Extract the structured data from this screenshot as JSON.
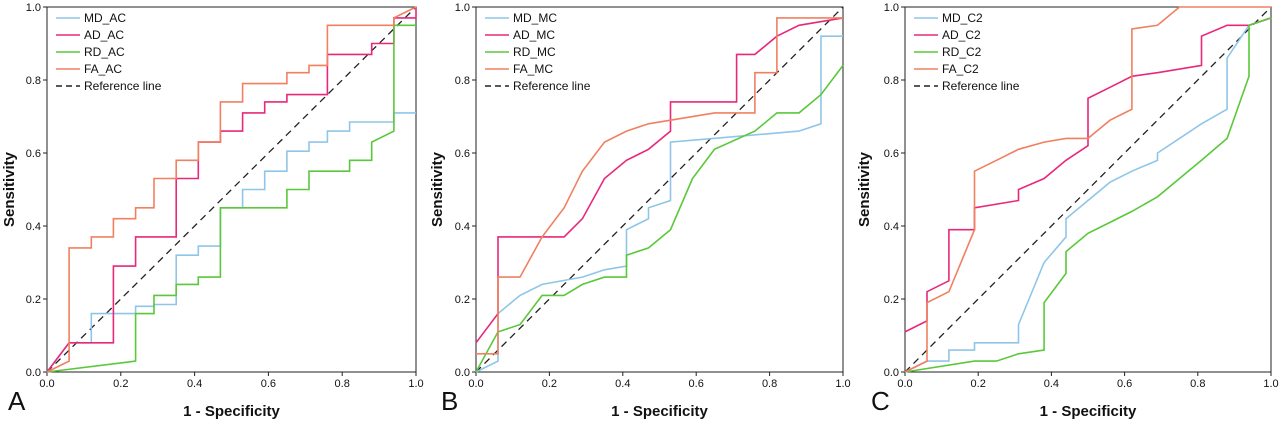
{
  "chart_data": [
    {
      "type": "line",
      "panel_label": "A",
      "xlabel": "1 - Specificity",
      "ylabel": "Sensitivity",
      "xlim": [
        0,
        1
      ],
      "ylim": [
        0,
        1
      ],
      "xticks": [
        "0.0",
        "0.2",
        "0.4",
        "0.6",
        "0.8",
        "1.0"
      ],
      "yticks": [
        "0.0",
        "0.2",
        "0.4",
        "0.6",
        "0.8",
        "1.0"
      ],
      "grid": false,
      "legend_position": "top-left",
      "reference_line": {
        "name": "Reference line",
        "color": "#222222"
      },
      "series": [
        {
          "name": "MD_AC",
          "color": "#8fc6e8",
          "x": [
            0,
            0.06,
            0.12,
            0.12,
            0.24,
            0.24,
            0.29,
            0.29,
            0.35,
            0.35,
            0.41,
            0.41,
            0.47,
            0.47,
            0.53,
            0.53,
            0.59,
            0.59,
            0.65,
            0.65,
            0.71,
            0.71,
            0.76,
            0.76,
            0.82,
            0.82,
            0.94,
            0.94,
            1.0
          ],
          "y": [
            0,
            0.08,
            0.08,
            0.16,
            0.16,
            0.18,
            0.18,
            0.185,
            0.185,
            0.32,
            0.32,
            0.345,
            0.345,
            0.45,
            0.45,
            0.5,
            0.5,
            0.55,
            0.55,
            0.605,
            0.605,
            0.63,
            0.63,
            0.66,
            0.66,
            0.685,
            0.685,
            0.71,
            0.71
          ]
        },
        {
          "name": "AD_AC",
          "color": "#e8287a",
          "x": [
            0,
            0.06,
            0.18,
            0.18,
            0.24,
            0.24,
            0.35,
            0.35,
            0.41,
            0.41,
            0.47,
            0.47,
            0.53,
            0.53,
            0.59,
            0.59,
            0.65,
            0.65,
            0.76,
            0.76,
            0.88,
            0.88,
            0.94,
            0.94,
            1.0,
            1.0
          ],
          "y": [
            0,
            0.08,
            0.08,
            0.29,
            0.29,
            0.37,
            0.37,
            0.53,
            0.53,
            0.63,
            0.63,
            0.66,
            0.66,
            0.71,
            0.71,
            0.74,
            0.74,
            0.76,
            0.76,
            0.87,
            0.87,
            0.9,
            0.9,
            0.97,
            0.97,
            1.0
          ]
        },
        {
          "name": "RD_AC",
          "color": "#5ac83a",
          "x": [
            0,
            0.24,
            0.24,
            0.29,
            0.29,
            0.35,
            0.35,
            0.41,
            0.41,
            0.47,
            0.47,
            0.65,
            0.65,
            0.71,
            0.71,
            0.82,
            0.82,
            0.88,
            0.88,
            0.94,
            0.94,
            1.0
          ],
          "y": [
            0,
            0.03,
            0.16,
            0.16,
            0.21,
            0.21,
            0.24,
            0.24,
            0.26,
            0.26,
            0.45,
            0.45,
            0.5,
            0.5,
            0.55,
            0.55,
            0.58,
            0.58,
            0.63,
            0.66,
            0.95,
            0.95
          ]
        },
        {
          "name": "FA_AC",
          "color": "#f08060",
          "x": [
            0,
            0.06,
            0.06,
            0.12,
            0.12,
            0.18,
            0.18,
            0.24,
            0.24,
            0.29,
            0.29,
            0.35,
            0.35,
            0.41,
            0.41,
            0.47,
            0.47,
            0.53,
            0.53,
            0.65,
            0.65,
            0.71,
            0.71,
            0.76,
            0.76,
            0.94,
            0.94,
            1.0
          ],
          "y": [
            0,
            0.03,
            0.34,
            0.34,
            0.37,
            0.37,
            0.42,
            0.42,
            0.45,
            0.45,
            0.53,
            0.53,
            0.58,
            0.58,
            0.63,
            0.63,
            0.74,
            0.74,
            0.79,
            0.79,
            0.82,
            0.82,
            0.84,
            0.84,
            0.95,
            0.95,
            0.97,
            1.0
          ]
        }
      ]
    },
    {
      "type": "line",
      "panel_label": "B",
      "xlabel": "1 - Specificity",
      "ylabel": "Sensitivity",
      "xlim": [
        0,
        1
      ],
      "ylim": [
        0,
        1
      ],
      "xticks": [
        "0.0",
        "0.2",
        "0.4",
        "0.6",
        "0.8",
        "1.0"
      ],
      "yticks": [
        "0.0",
        "0.2",
        "0.4",
        "0.6",
        "0.8",
        "1.0"
      ],
      "grid": false,
      "legend_position": "top-left",
      "reference_line": {
        "name": "Reference line",
        "color": "#222222"
      },
      "series": [
        {
          "name": "MD_MC",
          "color": "#8fc6e8",
          "x": [
            0,
            0.06,
            0.06,
            0.12,
            0.18,
            0.29,
            0.35,
            0.41,
            0.41,
            0.47,
            0.47,
            0.53,
            0.53,
            0.88,
            0.94,
            0.94,
            1.0
          ],
          "y": [
            0,
            0.03,
            0.16,
            0.21,
            0.24,
            0.26,
            0.28,
            0.29,
            0.39,
            0.42,
            0.45,
            0.47,
            0.63,
            0.66,
            0.68,
            0.92,
            0.92
          ]
        },
        {
          "name": "AD_MC",
          "color": "#e8287a",
          "x": [
            0,
            0.06,
            0.06,
            0.24,
            0.29,
            0.35,
            0.41,
            0.47,
            0.53,
            0.53,
            0.71,
            0.71,
            0.76,
            0.82,
            0.88,
            1.0
          ],
          "y": [
            0.08,
            0.16,
            0.37,
            0.37,
            0.42,
            0.53,
            0.58,
            0.61,
            0.66,
            0.74,
            0.74,
            0.87,
            0.87,
            0.92,
            0.95,
            0.97
          ]
        },
        {
          "name": "RD_MC",
          "color": "#5ac83a",
          "x": [
            0,
            0.06,
            0.12,
            0.18,
            0.24,
            0.29,
            0.35,
            0.41,
            0.41,
            0.47,
            0.53,
            0.59,
            0.65,
            0.76,
            0.82,
            0.88,
            0.94,
            0.94,
            1.0
          ],
          "y": [
            0,
            0.11,
            0.13,
            0.21,
            0.21,
            0.24,
            0.26,
            0.26,
            0.32,
            0.34,
            0.39,
            0.53,
            0.61,
            0.66,
            0.71,
            0.71,
            0.76,
            0.76,
            0.84
          ]
        },
        {
          "name": "FA_MC",
          "color": "#f08060",
          "x": [
            0,
            0.06,
            0.06,
            0.12,
            0.18,
            0.24,
            0.29,
            0.35,
            0.41,
            0.47,
            0.65,
            0.76,
            0.76,
            0.82,
            0.82,
            1.0
          ],
          "y": [
            0.05,
            0.05,
            0.26,
            0.26,
            0.37,
            0.45,
            0.55,
            0.63,
            0.66,
            0.68,
            0.71,
            0.71,
            0.82,
            0.82,
            0.97,
            0.97
          ]
        }
      ]
    },
    {
      "type": "line",
      "panel_label": "C",
      "xlabel": "1 - Specificity",
      "ylabel": "Sensitivity",
      "xlim": [
        0,
        1
      ],
      "ylim": [
        0,
        1
      ],
      "xticks": [
        "0.0",
        "0.2",
        "0.4",
        "0.6",
        "0.8",
        "1.0"
      ],
      "yticks": [
        "0.0",
        "0.2",
        "0.4",
        "0.6",
        "0.8",
        "1.0"
      ],
      "grid": false,
      "legend_position": "top-left",
      "reference_line": {
        "name": "Reference line",
        "color": "#222222"
      },
      "series": [
        {
          "name": "MD_C2",
          "color": "#8fc6e8",
          "x": [
            0,
            0.06,
            0.12,
            0.12,
            0.19,
            0.19,
            0.25,
            0.31,
            0.31,
            0.38,
            0.44,
            0.44,
            0.5,
            0.56,
            0.62,
            0.69,
            0.69,
            0.75,
            0.81,
            0.88,
            0.88,
            0.94,
            1.0
          ],
          "y": [
            0,
            0.03,
            0.03,
            0.06,
            0.06,
            0.08,
            0.08,
            0.08,
            0.13,
            0.3,
            0.37,
            0.42,
            0.47,
            0.52,
            0.55,
            0.58,
            0.6,
            0.64,
            0.68,
            0.72,
            0.86,
            0.95,
            0.97
          ]
        },
        {
          "name": "AD_C2",
          "color": "#e8287a",
          "x": [
            0,
            0.06,
            0.06,
            0.12,
            0.12,
            0.19,
            0.19,
            0.31,
            0.31,
            0.38,
            0.44,
            0.5,
            0.5,
            0.56,
            0.62,
            0.69,
            0.81,
            0.81,
            0.88,
            0.94,
            1.0
          ],
          "y": [
            0.11,
            0.14,
            0.22,
            0.25,
            0.39,
            0.39,
            0.45,
            0.47,
            0.5,
            0.53,
            0.58,
            0.62,
            0.75,
            0.78,
            0.81,
            0.82,
            0.84,
            0.92,
            0.95,
            0.95,
            0.97
          ]
        },
        {
          "name": "RD_C2",
          "color": "#5ac83a",
          "x": [
            0,
            0.19,
            0.25,
            0.31,
            0.38,
            0.38,
            0.44,
            0.44,
            0.5,
            0.56,
            0.62,
            0.69,
            0.75,
            0.81,
            0.88,
            0.94,
            0.94,
            1.0
          ],
          "y": [
            0,
            0.03,
            0.03,
            0.05,
            0.06,
            0.19,
            0.27,
            0.33,
            0.38,
            0.41,
            0.44,
            0.48,
            0.53,
            0.58,
            0.64,
            0.81,
            0.95,
            0.97
          ]
        },
        {
          "name": "FA_C2",
          "color": "#f08060",
          "x": [
            0,
            0.06,
            0.06,
            0.12,
            0.19,
            0.19,
            0.25,
            0.31,
            0.38,
            0.44,
            0.5,
            0.56,
            0.62,
            0.62,
            0.69,
            0.75,
            0.81,
            0.88,
            1.0
          ],
          "y": [
            0,
            0.03,
            0.19,
            0.22,
            0.39,
            0.55,
            0.58,
            0.61,
            0.63,
            0.64,
            0.64,
            0.69,
            0.72,
            0.94,
            0.95,
            1.0,
            1.0,
            1.0,
            1.0
          ]
        }
      ]
    }
  ]
}
